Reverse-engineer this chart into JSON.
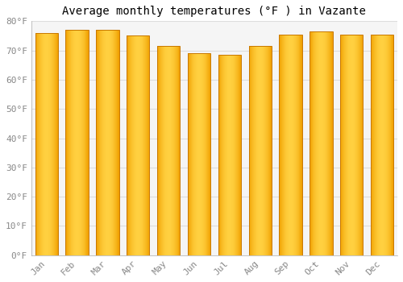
{
  "months": [
    "Jan",
    "Feb",
    "Mar",
    "Apr",
    "May",
    "Jun",
    "Jul",
    "Aug",
    "Sep",
    "Oct",
    "Nov",
    "Dec"
  ],
  "values": [
    76,
    77,
    77,
    75,
    71.5,
    69,
    68.5,
    71.5,
    75.5,
    76.5,
    75.5,
    75.5
  ],
  "title": "Average monthly temperatures (°F ) in Vazante",
  "ylabel_ticks": [
    "0°F",
    "10°F",
    "20°F",
    "30°F",
    "40°F",
    "50°F",
    "60°F",
    "70°F",
    "80°F"
  ],
  "ytick_vals": [
    0,
    10,
    20,
    30,
    40,
    50,
    60,
    70,
    80
  ],
  "ylim": [
    0,
    80
  ],
  "bar_color_left": "#F0A000",
  "bar_color_center": "#FFD040",
  "bar_color_right": "#F0A000",
  "bar_edge_color": "#C87800",
  "background_color": "#ffffff",
  "plot_bg_color": "#f5f5f5",
  "grid_color": "#dddddd",
  "title_fontsize": 10,
  "tick_fontsize": 8,
  "font_family": "monospace"
}
